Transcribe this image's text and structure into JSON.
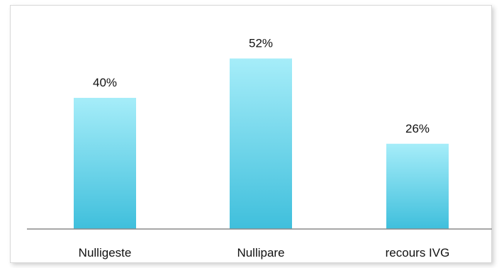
{
  "chart_data": {
    "type": "bar",
    "categories": [
      "Nulligeste",
      "Nullipare",
      "recours IVG"
    ],
    "values": [
      40,
      52,
      26
    ],
    "value_labels": [
      "40%",
      "52%",
      "26%"
    ],
    "unit": "%",
    "title": "",
    "xlabel": "",
    "ylabel": "",
    "ylim": [
      0,
      60
    ],
    "grid": false,
    "legend": "none",
    "colors": {
      "bar_top": "#a6edf9",
      "bar_bottom": "#3fbfdc",
      "axis": "#8a8a8a"
    }
  }
}
